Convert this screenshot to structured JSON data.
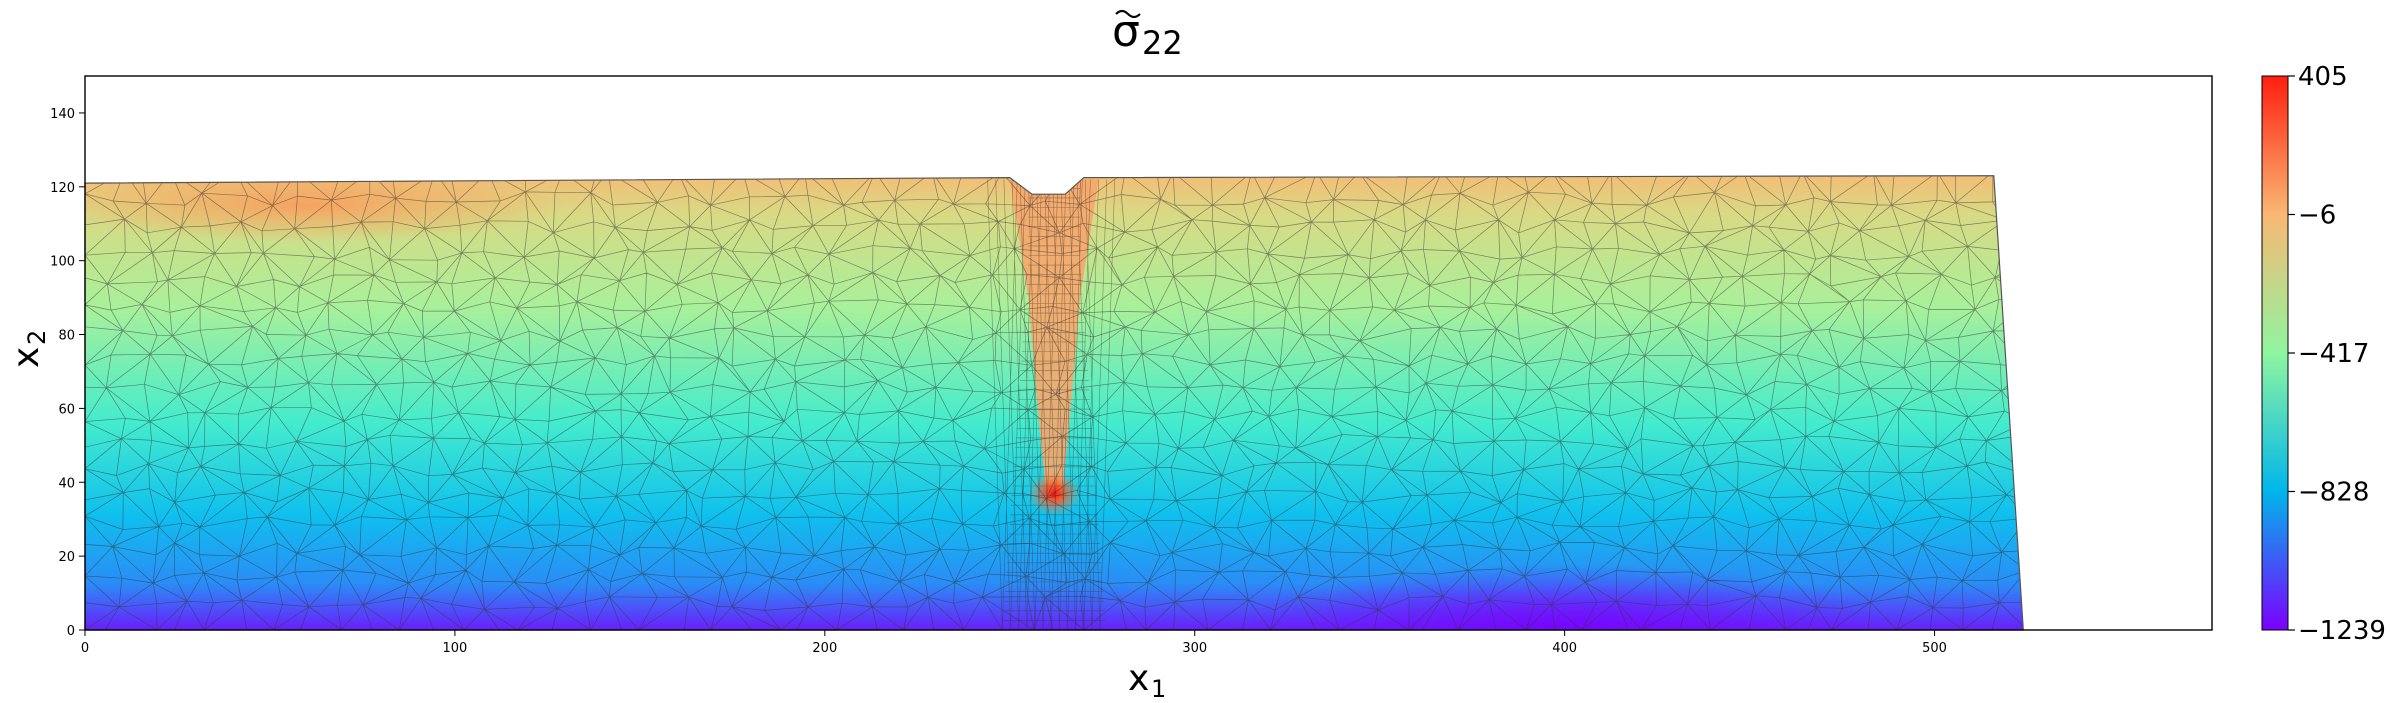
{
  "chart_data": {
    "type": "heatmap",
    "title_base": "σ",
    "title_subscript": "22",
    "xlabel_base": "x",
    "xlabel_subscript": "1",
    "ylabel_base": "x",
    "ylabel_subscript": "2",
    "xlim": [
      0,
      575
    ],
    "ylim": [
      0,
      150
    ],
    "x_ticks": [
      0,
      100,
      200,
      300,
      400,
      500
    ],
    "y_ticks": [
      0,
      20,
      40,
      60,
      80,
      100,
      120,
      140
    ],
    "colormap": "rainbow",
    "colorbar": {
      "ticks": [
        "405",
        "−6",
        "−417",
        "−828",
        "−1239"
      ],
      "tick_values": [
        405,
        -6,
        -417,
        -828,
        -1239
      ],
      "range": [
        -1239,
        405
      ],
      "colors": [
        "#ff1e10",
        "#f9b873",
        "#8ff5a0",
        "#00b6ea",
        "#7b00ff"
      ]
    },
    "grid": false,
    "mesh": "triangular finite-element mesh",
    "domain_outline": [
      [
        0,
        0
      ],
      [
        0,
        121
      ],
      [
        250,
        122.5
      ],
      [
        256,
        118
      ],
      [
        265,
        118
      ],
      [
        270,
        122.5
      ],
      [
        516,
        123
      ],
      [
        524,
        0
      ]
    ],
    "notch": {
      "x_center": 262,
      "tip_y": 35,
      "peak_value": 405
    },
    "field_pattern": "compressive stress increasing toward bottom; tensile band along top surface; stress concentration at crack tip near (262, 37); minimum near (400, 0)"
  }
}
